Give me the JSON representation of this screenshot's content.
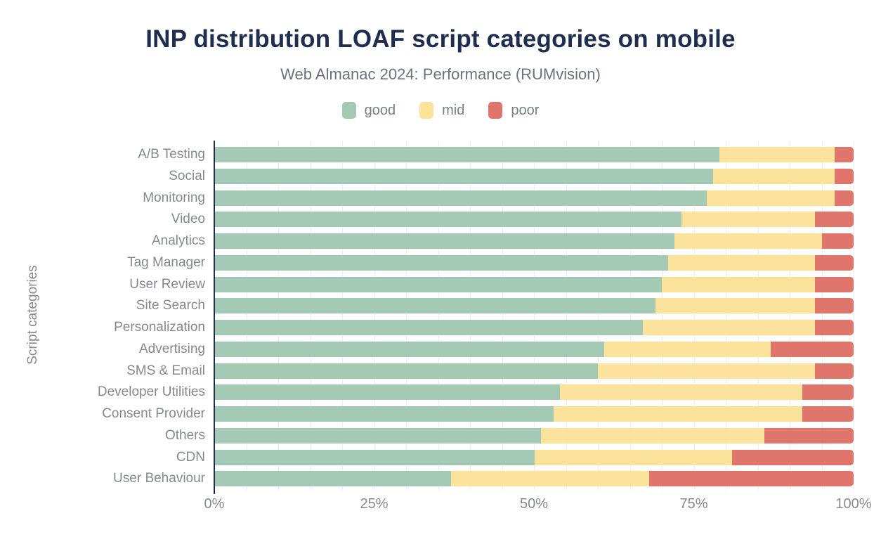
{
  "chart_data": {
    "type": "bar",
    "orientation": "horizontal",
    "stacked": true,
    "title": "INP distribution LOAF script categories on mobile",
    "subtitle": "Web Almanac 2024: Performance (RUMvision)",
    "xlabel": "",
    "ylabel": "Script categories",
    "xlim": [
      0,
      100
    ],
    "x_ticks": [
      "0%",
      "25%",
      "50%",
      "75%",
      "100%"
    ],
    "x_tick_values": [
      0,
      25,
      50,
      75,
      100
    ],
    "grid_step_pct": 5,
    "grid": "vertical light-gray lines every 5%",
    "legend_position": "top",
    "categories": [
      "A/B Testing",
      "Social",
      "Monitoring",
      "Video",
      "Analytics",
      "Tag Manager",
      "User Review",
      "Site Search",
      "Personalization",
      "Advertising",
      "SMS & Email",
      "Developer Utilities",
      "Consent Provider",
      "Others",
      "CDN",
      "User Behaviour"
    ],
    "series": [
      {
        "name": "good",
        "color": "#a4c9b4",
        "values": [
          79,
          78,
          77,
          73,
          72,
          71,
          70,
          69,
          67,
          61,
          60,
          54,
          53,
          51,
          50,
          37
        ]
      },
      {
        "name": "mid",
        "color": "#fbe39b",
        "values": [
          18,
          19,
          20,
          21,
          23,
          23,
          24,
          25,
          27,
          26,
          34,
          38,
          39,
          35,
          31,
          31
        ]
      },
      {
        "name": "poor",
        "color": "#e0766b",
        "values": [
          3,
          3,
          3,
          6,
          5,
          6,
          6,
          6,
          6,
          13,
          6,
          8,
          8,
          14,
          19,
          32
        ]
      }
    ],
    "unit": "percent"
  },
  "palette": {
    "title_navy": "#1f2d4e",
    "axis_text_gray": "#85898e",
    "subtitle_gray": "#6a737d",
    "gridline_gray": "#ededed",
    "background": "#ffffff"
  }
}
